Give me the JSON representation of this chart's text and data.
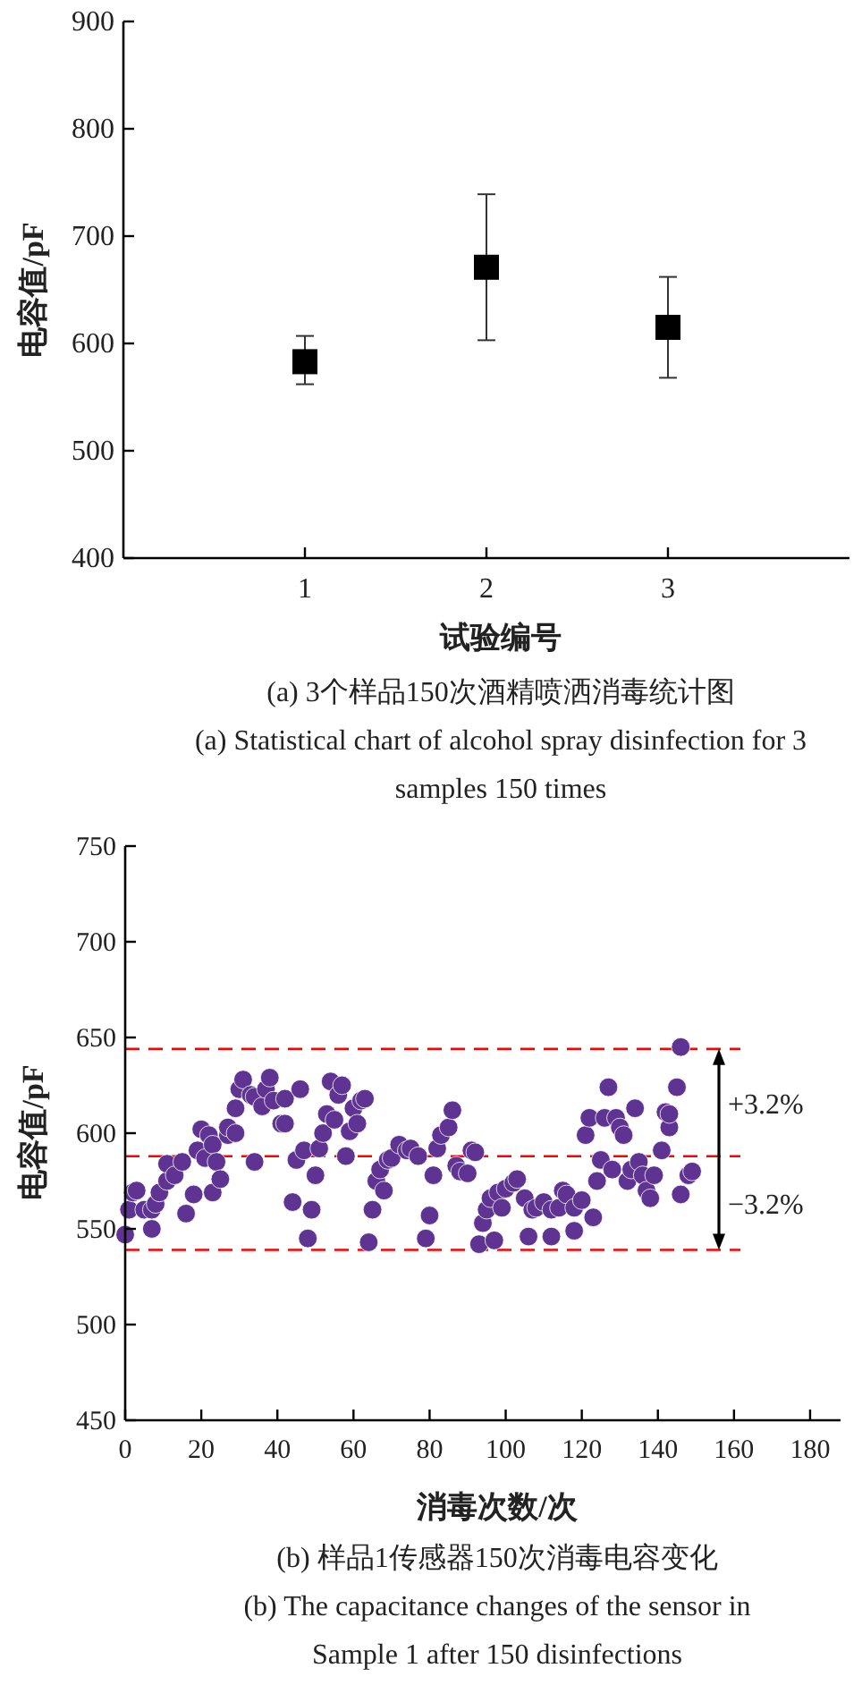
{
  "chart_data": [
    {
      "type": "scatter",
      "ylabel": "电容值/pF",
      "xlabel": "试验编号",
      "title": "(a) 3个样品150次酒精喷洒消毒统计图",
      "subtitle": "(a) Statistical chart of alcohol spray disinfection for 3 samples 150 times",
      "x": [
        1,
        2,
        3
      ],
      "values": [
        583,
        671,
        615
      ],
      "errors": [
        [
          562,
          607
        ],
        [
          603,
          739
        ],
        [
          568,
          662
        ]
      ],
      "color": "#000000",
      "marker": "square",
      "xlim": [
        0,
        4
      ],
      "xticks": [
        1,
        2,
        3
      ],
      "ylim": [
        400,
        900
      ],
      "yticks": [
        400,
        500,
        600,
        700,
        800,
        900
      ]
    },
    {
      "type": "scatter",
      "ylabel": "电容值/pF",
      "xlabel": "消毒次数/次",
      "title": "(b) 样品1传感器150次消毒电容变化",
      "subtitle": "(b) The capacitance changes of the sensor in Sample 1 after 150 disinfections",
      "color": "#5e3391",
      "marker": "circle",
      "x": [
        0,
        1,
        2,
        3,
        5,
        7,
        7,
        8,
        9,
        11,
        11,
        13,
        15,
        16,
        18,
        19,
        20,
        21,
        22,
        23,
        23,
        24,
        25,
        27,
        27,
        29,
        29,
        30,
        31,
        33,
        34,
        34,
        36,
        37,
        38,
        39,
        41,
        42,
        42,
        44,
        45,
        46,
        47,
        48,
        49,
        50,
        51,
        52,
        53,
        54,
        55,
        56,
        57,
        58,
        59,
        60,
        61,
        62,
        63,
        64,
        65,
        66,
        67,
        68,
        69,
        70,
        72,
        74,
        75,
        77,
        79,
        80,
        81,
        82,
        83,
        85,
        86,
        87,
        88,
        90,
        91,
        92,
        93,
        94,
        95,
        96,
        97,
        98,
        99,
        100,
        102,
        103,
        105,
        106,
        107,
        108,
        110,
        112,
        112,
        114,
        115,
        116,
        118,
        118,
        120,
        121,
        122,
        123,
        124,
        125,
        126,
        127,
        128,
        129,
        130,
        131,
        132,
        133,
        134,
        135,
        136,
        137,
        138,
        139,
        141,
        142,
        143,
        143,
        145,
        146,
        146,
        148,
        149
      ],
      "values": [
        547,
        560,
        569,
        570,
        560,
        550,
        560,
        563,
        569,
        575,
        584,
        578,
        585,
        558,
        568,
        591,
        602,
        587,
        599,
        594,
        569,
        585,
        576,
        599,
        603,
        600,
        613,
        623,
        628,
        620,
        585,
        619,
        614,
        623,
        629,
        617,
        605,
        618,
        605,
        564,
        586,
        623,
        591,
        545,
        560,
        578,
        592,
        600,
        610,
        627,
        607,
        620,
        625,
        588,
        601,
        613,
        605,
        617,
        618,
        543,
        560,
        575,
        581,
        570,
        586,
        587,
        594,
        591,
        592,
        588,
        545,
        557,
        578,
        592,
        599,
        603,
        612,
        583,
        580,
        579,
        591,
        590,
        542,
        553,
        560,
        566,
        544,
        569,
        561,
        571,
        574,
        576,
        566,
        546,
        560,
        561,
        564,
        546,
        560,
        561,
        570,
        568,
        549,
        561,
        565,
        599,
        608,
        556,
        575,
        586,
        608,
        624,
        581,
        608,
        603,
        599,
        575,
        581,
        613,
        585,
        578,
        570,
        566,
        578,
        591,
        611,
        603,
        610,
        624,
        645,
        568,
        578,
        580
      ],
      "xlim": [
        0,
        188
      ],
      "xticks": [
        0,
        20,
        40,
        60,
        80,
        100,
        120,
        140,
        160,
        180
      ],
      "ylim": [
        450,
        750
      ],
      "yticks": [
        450,
        500,
        550,
        600,
        650,
        700,
        750
      ],
      "ref_lines": [
        {
          "axis": "y",
          "value": 644,
          "color": "#ff0000",
          "line_style": "dashed"
        },
        {
          "axis": "y",
          "value": 588,
          "color": "#ff0000",
          "line_style": "dashed"
        },
        {
          "axis": "y",
          "value": 539,
          "color": "#ff0000",
          "line_style": "dashed"
        }
      ],
      "annotations": [
        "+3.2%",
        "−3.2%"
      ]
    }
  ]
}
